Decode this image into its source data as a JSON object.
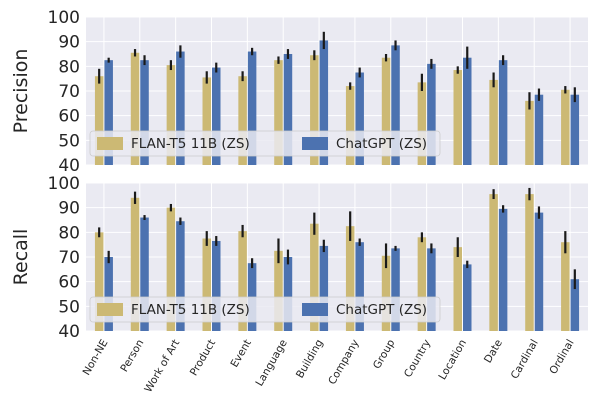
{
  "colors": {
    "flan": "#ccb974",
    "chatgpt": "#4c72b0",
    "background": "#eaeaf2",
    "grid": "#ffffff",
    "errorbar": "#1a1a1a"
  },
  "chart_data": [
    {
      "type": "bar",
      "ylabel": "Precision",
      "ylim": [
        40,
        100
      ],
      "yticks": [
        40,
        50,
        60,
        70,
        80,
        90,
        100
      ],
      "grid": true,
      "legend": "lower-left",
      "categories": [
        "Non-NE",
        "Person",
        "Work of Art",
        "Product",
        "Event",
        "Language",
        "Building",
        "Company",
        "Group",
        "Country",
        "Location",
        "Date",
        "Cardinal",
        "Ordinal"
      ],
      "series": [
        {
          "name": "FLAN-T5 11B (ZS)",
          "color": "#ccb974",
          "values": [
            76,
            85.5,
            80.5,
            75.5,
            76,
            82.5,
            84.5,
            72,
            83.5,
            73.5,
            78.5,
            74.5,
            66,
            70.5
          ],
          "errors": [
            3,
            1.5,
            2,
            2.5,
            2,
            1.5,
            2,
            1.5,
            1.5,
            3.5,
            1.5,
            3,
            3.5,
            1.5
          ]
        },
        {
          "name": "ChatGPT (ZS)",
          "color": "#4c72b0",
          "values": [
            82.5,
            82.5,
            86,
            79.5,
            86,
            85,
            90.5,
            77.5,
            88.5,
            81,
            83.5,
            82.5,
            68.5,
            68.5
          ],
          "errors": [
            1,
            2,
            2.5,
            2,
            1.5,
            2,
            3.5,
            2,
            2,
            2,
            4.5,
            2,
            2.5,
            3
          ]
        }
      ]
    },
    {
      "type": "bar",
      "ylabel": "Recall",
      "ylim": [
        40,
        100
      ],
      "yticks": [
        40,
        50,
        60,
        70,
        80,
        90,
        100
      ],
      "grid": true,
      "legend": "lower-left",
      "categories": [
        "Non-NE",
        "Person",
        "Work of Art",
        "Product",
        "Event",
        "Language",
        "Building",
        "Company",
        "Group",
        "Country",
        "Location",
        "Date",
        "Cardinal",
        "Ordinal"
      ],
      "series": [
        {
          "name": "FLAN-T5 11B (ZS)",
          "color": "#ccb974",
          "values": [
            80,
            94,
            90,
            77.5,
            80.5,
            72.5,
            83.5,
            82.5,
            70.5,
            78,
            74,
            95.5,
            95.5,
            76
          ],
          "errors": [
            2,
            2.5,
            1.5,
            3,
            2.5,
            5,
            4.5,
            6,
            5,
            2,
            4,
            2,
            2.5,
            4.5
          ]
        },
        {
          "name": "ChatGPT (ZS)",
          "color": "#4c72b0",
          "values": [
            70,
            86,
            84.5,
            76.5,
            67.5,
            70,
            74.5,
            76,
            73.5,
            73.5,
            67,
            89.5,
            88,
            61
          ],
          "errors": [
            2.5,
            1,
            1.5,
            2,
            2,
            3,
            2.5,
            1.5,
            1,
            2,
            1.5,
            1.5,
            2.5,
            4
          ]
        }
      ]
    }
  ]
}
